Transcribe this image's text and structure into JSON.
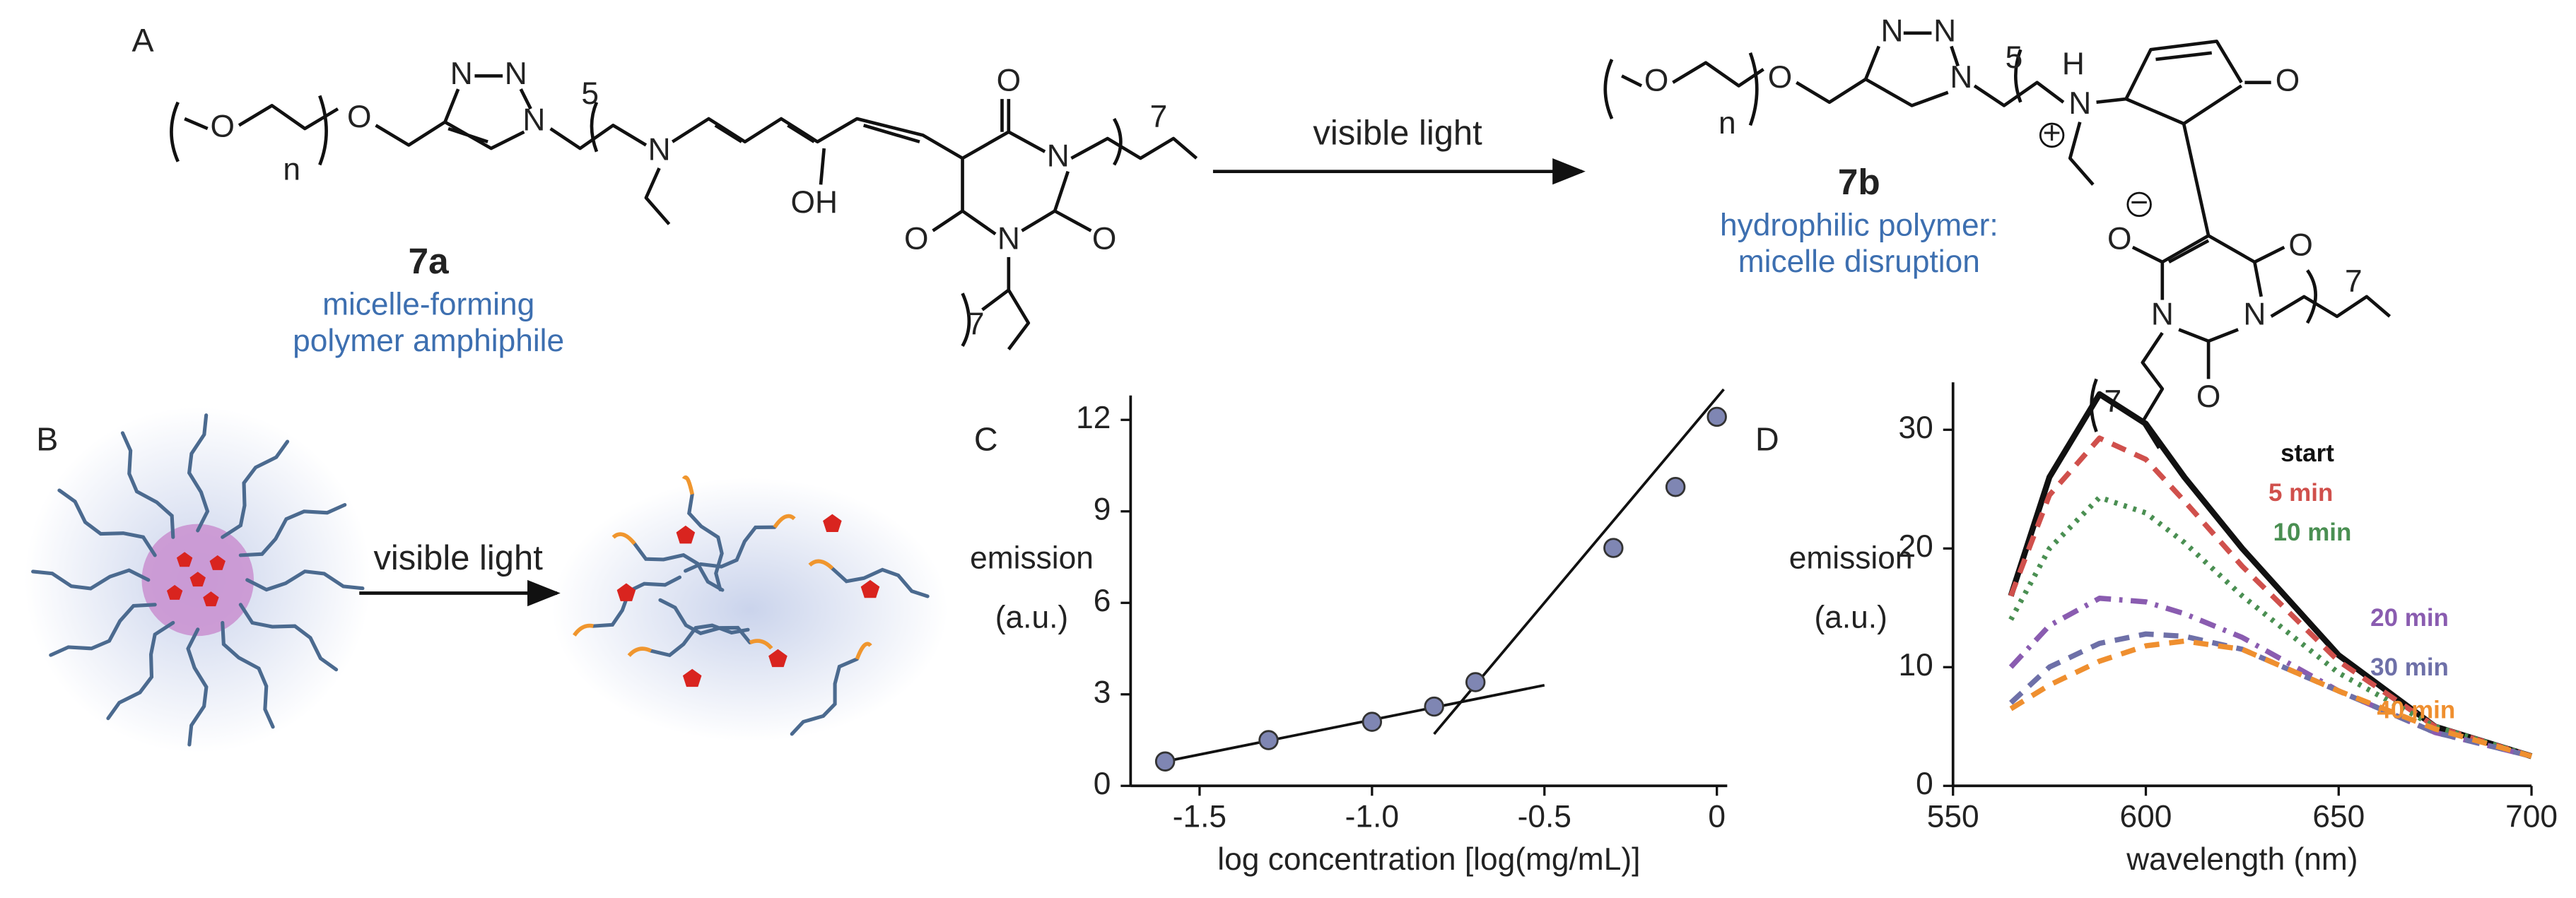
{
  "scheme": {
    "label": "A",
    "arrow_label": "visible light",
    "reactant": {
      "id": "7a",
      "description": [
        "micelle-forming",
        "polymer amphiphile"
      ],
      "atoms": [
        "O",
        "n",
        "O",
        "N",
        "N",
        "N",
        "5",
        "N",
        "OH",
        "O",
        "N",
        "O",
        "N",
        "O",
        "7",
        "7"
      ]
    },
    "product": {
      "id": "7b",
      "description": [
        "hydrophilic polymer:",
        "micelle disruption"
      ],
      "atoms": [
        "O",
        "n",
        "O",
        "N",
        "N",
        "N",
        "5",
        "H",
        "N",
        "+",
        "O",
        "O",
        "−",
        "O",
        "N",
        "N",
        "O",
        "7",
        "7"
      ]
    }
  },
  "panel_b": {
    "label": "B",
    "arrow_label": "visible light"
  },
  "chart_data": [
    {
      "type": "scatter",
      "label": "C",
      "x_label": "log concentration [log(mg/mL)]",
      "y_label_lines": [
        "emission",
        "(a.u.)"
      ],
      "x": [
        -1.6,
        -1.3,
        -1.0,
        -0.82,
        -0.7,
        -0.3,
        -0.12,
        0
      ],
      "y": [
        0.8,
        1.5,
        2.1,
        2.6,
        3.4,
        7.8,
        9.8,
        12.1
      ],
      "color": "#7f86b3",
      "fit_lines": [
        {
          "x": [
            -1.6,
            -0.5
          ],
          "y": [
            0.8,
            3.3
          ]
        },
        {
          "x": [
            -0.82,
            0.02
          ],
          "y": [
            1.7,
            13
          ]
        }
      ],
      "xlim": [
        -1.7,
        0.03
      ],
      "ylim": [
        0,
        12.8
      ],
      "xticks": [
        -1.5,
        {
          "value": -1,
          "label": "-1.0"
        },
        -0.5,
        0
      ],
      "yticks": [
        0,
        3,
        6,
        9,
        12
      ]
    },
    {
      "type": "line",
      "label": "D",
      "x_label": "wavelength (nm)",
      "y_label_lines": [
        "emission",
        "(a.u.)"
      ],
      "x": [
        565,
        575,
        588,
        600,
        610,
        625,
        650,
        675,
        700
      ],
      "series": [
        {
          "name": "start",
          "color": "#111111",
          "style": "solid",
          "values": [
            16,
            26,
            33,
            30.5,
            26,
            20,
            11,
            5,
            2.5
          ]
        },
        {
          "name": "5 min",
          "color": "#d0504c",
          "style": "dashed",
          "values": [
            16,
            24.5,
            29.3,
            27.5,
            24,
            18.5,
            10.5,
            5,
            2.5
          ]
        },
        {
          "name": "10 min",
          "color": "#4a8f52",
          "style": "dotted",
          "values": [
            14,
            20,
            24.3,
            23,
            20.5,
            16,
            9.5,
            5,
            2.5
          ]
        },
        {
          "name": "20 min",
          "color": "#8a5cb0",
          "style": "dashdot",
          "values": [
            10,
            13.5,
            15.8,
            15.5,
            14.5,
            12.5,
            8,
            4.5,
            2.5
          ]
        },
        {
          "name": "30 min",
          "color": "#6e70a8",
          "style": "dashed",
          "values": [
            7,
            10,
            12,
            12.8,
            12.6,
            11.5,
            8,
            4.5,
            2.5
          ]
        },
        {
          "name": "40 min",
          "color": "#ef8f2f",
          "style": "dashed",
          "values": [
            6.5,
            8.5,
            10.5,
            11.8,
            12.2,
            11.5,
            8,
            4.8,
            2.5
          ]
        }
      ],
      "xlim": [
        550,
        700
      ],
      "ylim": [
        0,
        34
      ],
      "xticks": [
        550,
        600,
        650,
        700
      ],
      "yticks": [
        0,
        10,
        20,
        30
      ]
    }
  ]
}
